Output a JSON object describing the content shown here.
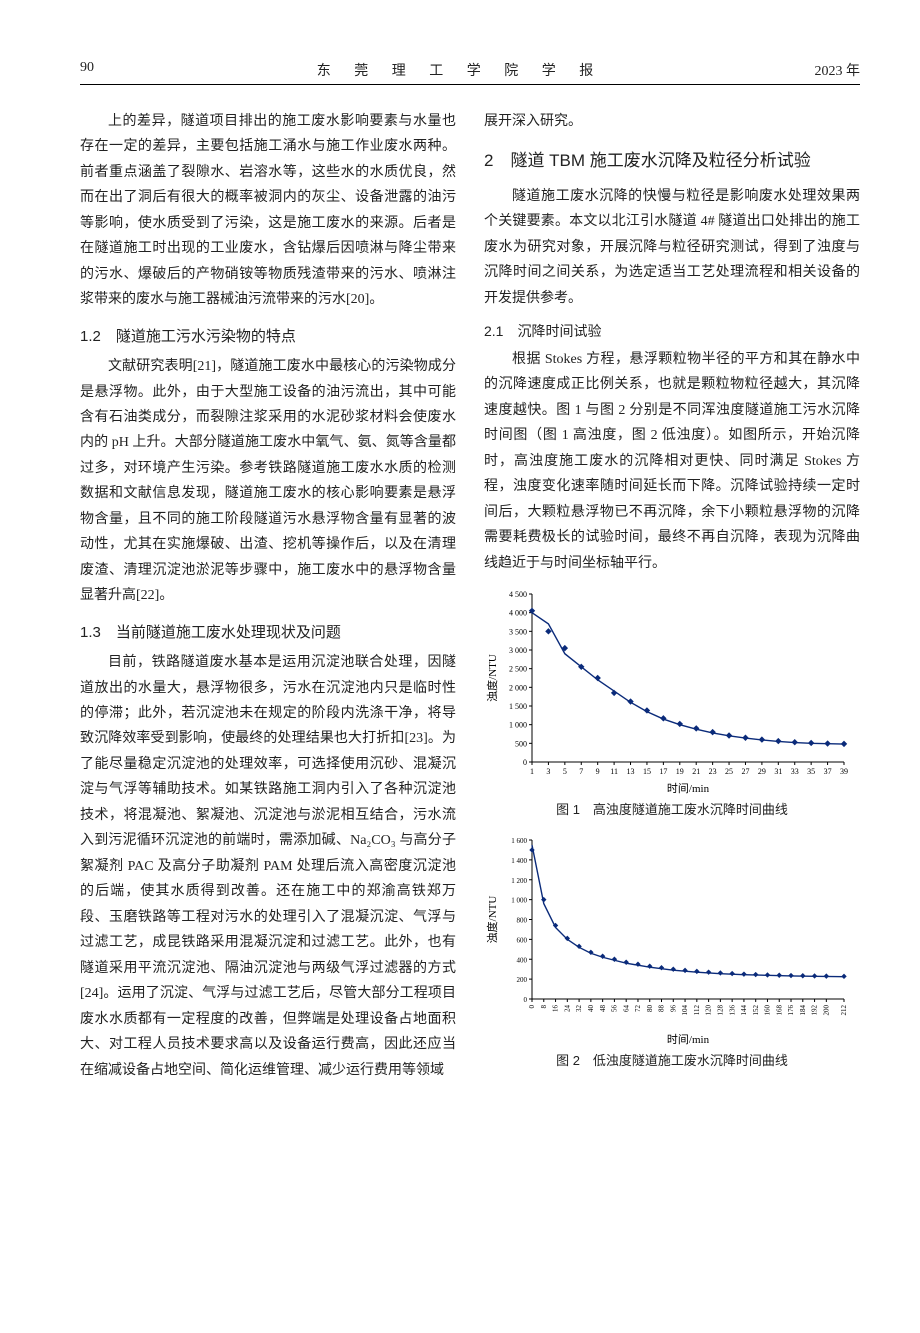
{
  "header": {
    "page_number": "90",
    "journal_name": "东 莞 理 工 学 院 学 报",
    "year": "2023 年"
  },
  "left": {
    "para1": "上的差异，隧道项目排出的施工废水影响要素与水量也存在一定的差异，主要包括施工涌水与施工作业废水两种。前者重点涵盖了裂隙水、岩溶水等，这些水的水质优良，然而在出了洞后有很大的概率被洞内的灰尘、设备泄露的油污等影响，使水质受到了污染，这是施工废水的来源。后者是在隧道施工时出现的工业废水，含钻爆后因喷淋与降尘带来的污水、爆破后的产物硝铵等物质残渣带来的污水、喷淋注浆带来的废水与施工器械油污流带来的污水[20]。",
    "h12": "1.2　隧道施工污水污染物的特点",
    "para2": "文献研究表明[21]，隧道施工废水中最核心的污染物成分是悬浮物。此外，由于大型施工设备的油污流出，其中可能含有石油类成分，而裂隙注浆采用的水泥砂浆材料会使废水内的 pH 上升。大部分隧道施工废水中氧气、氨、氮等含量都过多，对环境产生污染。参考铁路隧道施工废水水质的检测数据和文献信息发现，隧道施工废水的核心影响要素是悬浮物含量，且不同的施工阶段隧道污水悬浮物含量有显著的波动性，尤其在实施爆破、出渣、挖机等操作后，以及在清理废渣、清理沉淀池淤泥等步骤中，施工废水中的悬浮物含量显著升高[22]。",
    "h13": "1.3　当前隧道施工废水处理现状及问题",
    "para3": "目前，铁路隧道废水基本是运用沉淀池联合处理，因隧道放出的水量大，悬浮物很多，污水在沉淀池内只是临时性的停滞；此外，若沉淀池未在规定的阶段内洗涤干净，将导致沉降效率受到影响，使最终的处理结果也大打折扣[23]。为了能尽量稳定沉淀池的处理效率，可选择使用沉砂、混凝沉淀与气浮等辅助技术。如某铁路施工洞内引入了各种沉淀池技术，将混凝池、絮凝池、沉淀池与淤泥相互结合，污水流入到污泥循环沉淀池的前端时，需添加碱、Na₂CO₃ 与高分子絮凝剂 PAC 及高分子助凝剂 PAM 处理后流入高密度沉淀池的后端，使其水质得到改善。还在施工中的郑渝高铁郑万段、玉磨铁路等工程对污水的处理引入了混凝沉淀、气浮与过滤工艺，成昆铁路采用混凝沉淀和过滤工艺。此外，也有隧道采用平流沉淀池、隔油沉淀池与两级气浮过滤器的方式[24]。运用了沉淀、气浮与过滤工艺后，尽管大部分工程项目废水水质都有一定程度的改善，但弊端是处理设备占地面积大、对工程人员技术要求高以及设备运行费高，因此还应当在缩减设备占地空间、简化运维管理、减少运行费用等领域"
  },
  "right": {
    "para0": "展开深入研究。",
    "sec2": "2　隧道 TBM 施工废水沉降及粒径分析试验",
    "para1": "隧道施工废水沉降的快慢与粒径是影响废水处理效果两个关键要素。本文以北江引水隧道 4# 隧道出口处排出的施工废水为研究对象，开展沉降与粒径研究测试，得到了浊度与沉降时间之间关系，为选定适当工艺处理流程和相关设备的开发提供参考。",
    "h21": "2.1　沉降时间试验",
    "para2": "根据 Stokes 方程，悬浮颗粒物半径的平方和其在静水中的沉降速度成正比例关系，也就是颗粒物粒径越大，其沉降速度越快。图 1 与图 2 分别是不同浑浊度隧道施工污水沉降时间图（图 1 高浊度，图 2 低浊度）。如图所示，开始沉降时，高浊度施工废水的沉降相对更快、同时满足 Stokes 方程，浊度变化速率随时间延长而下降。沉降试验持续一定时间后，大颗粒悬浮物已不再沉降，余下小颗粒悬浮物的沉降需要耗费极长的试验时间，最终不再自沉降，表现为沉降曲线趋近于与时间坐标轴平行。"
  },
  "fig1": {
    "type": "line",
    "title": "图 1　高浊度隧道施工废水沉降时间曲线",
    "xlabel": "时间/min",
    "ylabel": "浊度/NTU",
    "xlim": [
      1,
      39
    ],
    "ylim": [
      0,
      4500
    ],
    "xticks": [
      1,
      3,
      5,
      7,
      9,
      11,
      13,
      15,
      17,
      19,
      21,
      23,
      25,
      27,
      29,
      31,
      33,
      35,
      37,
      39
    ],
    "yticks": [
      0,
      500,
      1000,
      1500,
      2000,
      2500,
      3000,
      3500,
      4000,
      4500
    ],
    "series": [
      {
        "color": "#0b2b7a",
        "style": "line",
        "width": 1.4,
        "x": [
          1,
          3,
          5,
          7,
          9,
          11,
          13,
          15,
          17,
          19,
          21,
          23,
          25,
          27,
          29,
          31,
          33,
          35,
          37,
          39
        ],
        "y": [
          4000,
          3700,
          2900,
          2550,
          2200,
          1900,
          1600,
          1350,
          1150,
          1000,
          880,
          780,
          700,
          640,
          590,
          550,
          520,
          500,
          490,
          480
        ]
      },
      {
        "color": "#0b2b7a",
        "style": "markers",
        "marker": "diamond",
        "size": 5,
        "x": [
          1,
          3,
          5,
          7,
          9,
          11,
          13,
          15,
          17,
          19,
          21,
          23,
          25,
          27,
          29,
          31,
          33,
          35,
          37,
          39
        ],
        "y": [
          4050,
          3500,
          3050,
          2550,
          2250,
          1850,
          1620,
          1380,
          1170,
          1020,
          900,
          800,
          710,
          650,
          600,
          560,
          530,
          510,
          495,
          485
        ]
      }
    ],
    "background": "#ffffff",
    "axis_color": "#000000",
    "tick_fontsize": 8,
    "label_fontsize": 11
  },
  "fig2": {
    "type": "line",
    "title": "图 2　低浊度隧道施工废水沉降时间曲线",
    "xlabel": "时间/min",
    "ylabel": "浊度/NTU",
    "xlim": [
      0,
      212
    ],
    "ylim": [
      0,
      1600
    ],
    "xticks": [
      0,
      8,
      16,
      24,
      32,
      40,
      48,
      56,
      64,
      72,
      80,
      88,
      96,
      104,
      112,
      120,
      128,
      136,
      144,
      152,
      160,
      168,
      176,
      184,
      192,
      200,
      212
    ],
    "yticks": [
      0,
      200,
      400,
      600,
      800,
      1000,
      1200,
      1400,
      1600
    ],
    "series": [
      {
        "color": "#0b2b7a",
        "style": "line",
        "width": 1.4,
        "x": [
          0,
          8,
          16,
          24,
          32,
          40,
          48,
          56,
          64,
          72,
          80,
          96,
          112,
          128,
          144,
          160,
          176,
          192,
          212
        ],
        "y": [
          1550,
          960,
          720,
          600,
          520,
          460,
          420,
          390,
          360,
          340,
          320,
          290,
          270,
          255,
          245,
          238,
          232,
          228,
          225
        ]
      },
      {
        "color": "#0b2b7a",
        "style": "markers",
        "marker": "diamond",
        "size": 4,
        "x": [
          0,
          8,
          16,
          24,
          32,
          40,
          48,
          56,
          64,
          72,
          80,
          88,
          96,
          104,
          112,
          120,
          128,
          136,
          144,
          152,
          160,
          168,
          176,
          184,
          192,
          200,
          212
        ],
        "y": [
          1500,
          1000,
          740,
          610,
          530,
          470,
          430,
          400,
          370,
          350,
          330,
          315,
          300,
          288,
          278,
          270,
          262,
          256,
          250,
          246,
          242,
          239,
          236,
          234,
          232,
          230,
          228
        ]
      }
    ],
    "background": "#ffffff",
    "axis_color": "#000000",
    "tick_fontsize": 7,
    "label_fontsize": 11
  }
}
